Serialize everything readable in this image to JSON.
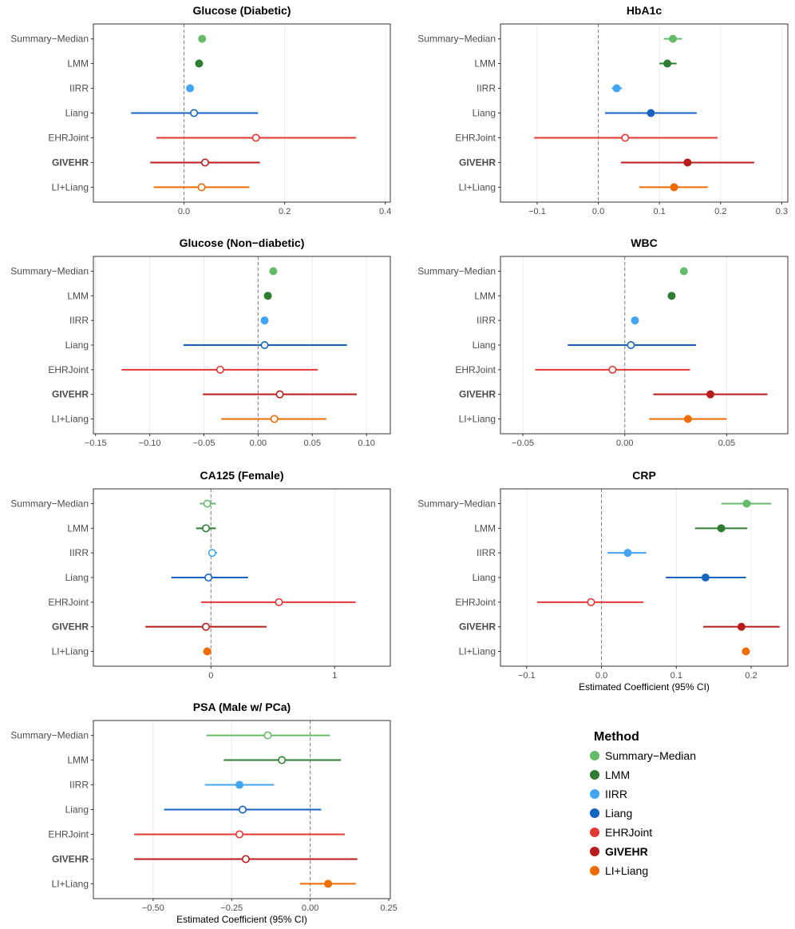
{
  "chart_data": [
    {
      "type": "forest",
      "title": "Glucose (Diabetic)",
      "xlabel": "",
      "xlim": [
        -0.18,
        0.41
      ],
      "xticks": [
        0.0,
        0.2,
        0.4
      ],
      "xtick_labels": [
        "0.0",
        "0.2",
        "0.4"
      ],
      "rows": [
        {
          "method": "Summary−Median",
          "est": 0.036,
          "lo": null,
          "hi": null,
          "filled": true
        },
        {
          "method": "LMM",
          "est": 0.03,
          "lo": null,
          "hi": null,
          "filled": true
        },
        {
          "method": "IIRR",
          "est": 0.012,
          "lo": null,
          "hi": null,
          "filled": true
        },
        {
          "method": "Liang",
          "est": 0.02,
          "lo": -0.105,
          "hi": 0.147,
          "filled": false
        },
        {
          "method": "EHRJoint",
          "est": 0.143,
          "lo": -0.055,
          "hi": 0.342,
          "filled": false
        },
        {
          "method": "GIVEHR",
          "est": 0.042,
          "lo": -0.067,
          "hi": 0.151,
          "filled": false
        },
        {
          "method": "LI+Liang",
          "est": 0.035,
          "lo": -0.06,
          "hi": 0.13,
          "filled": false
        }
      ]
    },
    {
      "type": "forest",
      "title": "HbA1c",
      "xlabel": "",
      "xlim": [
        -0.16,
        0.31
      ],
      "xticks": [
        -0.1,
        0.0,
        0.1,
        0.2,
        0.3
      ],
      "xtick_labels": [
        "−0.1",
        "0.0",
        "0.1",
        "0.2",
        "0.3"
      ],
      "rows": [
        {
          "method": "Summary−Median",
          "est": 0.122,
          "lo": 0.107,
          "hi": 0.137,
          "filled": true
        },
        {
          "method": "LMM",
          "est": 0.113,
          "lo": 0.1,
          "hi": 0.128,
          "filled": true
        },
        {
          "method": "IIRR",
          "est": 0.03,
          "lo": 0.022,
          "hi": 0.039,
          "filled": true
        },
        {
          "method": "Liang",
          "est": 0.086,
          "lo": 0.011,
          "hi": 0.161,
          "filled": true
        },
        {
          "method": "EHRJoint",
          "est": 0.044,
          "lo": -0.105,
          "hi": 0.195,
          "filled": false
        },
        {
          "method": "GIVEHR",
          "est": 0.146,
          "lo": 0.037,
          "hi": 0.255,
          "filled": true
        },
        {
          "method": "LI+Liang",
          "est": 0.124,
          "lo": 0.067,
          "hi": 0.179,
          "filled": true
        }
      ]
    },
    {
      "type": "forest",
      "title": "Glucose (Non−diabetic)",
      "xlabel": "",
      "xlim": [
        -0.152,
        0.122
      ],
      "xticks": [
        -0.15,
        -0.1,
        -0.05,
        0.0,
        0.05,
        0.1
      ],
      "xtick_labels": [
        "−0.15",
        "−0.10",
        "−0.05",
        "0.00",
        "0.05",
        "0.10"
      ],
      "rows": [
        {
          "method": "Summary−Median",
          "est": 0.014,
          "lo": null,
          "hi": null,
          "filled": true
        },
        {
          "method": "LMM",
          "est": 0.009,
          "lo": null,
          "hi": null,
          "filled": true
        },
        {
          "method": "IIRR",
          "est": 0.006,
          "lo": null,
          "hi": null,
          "filled": true
        },
        {
          "method": "Liang",
          "est": 0.006,
          "lo": -0.069,
          "hi": 0.082,
          "filled": false
        },
        {
          "method": "EHRJoint",
          "est": -0.035,
          "lo": -0.126,
          "hi": 0.055,
          "filled": false
        },
        {
          "method": "GIVEHR",
          "est": 0.02,
          "lo": -0.051,
          "hi": 0.091,
          "filled": false
        },
        {
          "method": "LI+Liang",
          "est": 0.015,
          "lo": -0.034,
          "hi": 0.063,
          "filled": false
        }
      ]
    },
    {
      "type": "forest",
      "title": "WBC",
      "xlabel": "",
      "xlim": [
        -0.061,
        0.08
      ],
      "xticks": [
        -0.05,
        0.0,
        0.05
      ],
      "xtick_labels": [
        "−0.05",
        "0.00",
        "0.05"
      ],
      "rows": [
        {
          "method": "Summary−Median",
          "est": 0.029,
          "lo": 0.028,
          "hi": 0.03,
          "filled": true
        },
        {
          "method": "LMM",
          "est": 0.023,
          "lo": 0.022,
          "hi": 0.024,
          "filled": true
        },
        {
          "method": "IIRR",
          "est": 0.005,
          "lo": null,
          "hi": null,
          "filled": true
        },
        {
          "method": "Liang",
          "est": 0.003,
          "lo": -0.028,
          "hi": 0.035,
          "filled": false
        },
        {
          "method": "EHRJoint",
          "est": -0.006,
          "lo": -0.044,
          "hi": 0.032,
          "filled": false
        },
        {
          "method": "GIVEHR",
          "est": 0.042,
          "lo": 0.014,
          "hi": 0.07,
          "filled": true
        },
        {
          "method": "LI+Liang",
          "est": 0.031,
          "lo": 0.012,
          "hi": 0.05,
          "filled": true
        }
      ]
    },
    {
      "type": "forest",
      "title": "CA125 (Female)",
      "xlabel": "",
      "xlim": [
        -0.95,
        1.45
      ],
      "xticks": [
        0,
        1
      ],
      "xtick_labels": [
        "0",
        "1"
      ],
      "rows": [
        {
          "method": "Summary−Median",
          "est": -0.03,
          "lo": -0.09,
          "hi": 0.04,
          "filled": false
        },
        {
          "method": "LMM",
          "est": -0.04,
          "lo": -0.12,
          "hi": 0.04,
          "filled": false
        },
        {
          "method": "IIRR",
          "est": 0.01,
          "lo": -0.02,
          "hi": 0.05,
          "filled": false
        },
        {
          "method": "Liang",
          "est": -0.02,
          "lo": -0.32,
          "hi": 0.3,
          "filled": false
        },
        {
          "method": "EHRJoint",
          "est": 0.55,
          "lo": -0.08,
          "hi": 1.17,
          "filled": false
        },
        {
          "method": "GIVEHR",
          "est": -0.04,
          "lo": -0.53,
          "hi": 0.45,
          "filled": false
        },
        {
          "method": "LI+Liang",
          "est": -0.03,
          "lo": null,
          "hi": null,
          "filled": true
        }
      ]
    },
    {
      "type": "forest",
      "title": "CRP",
      "xlabel": "Estimated Coefficient (95% CI)",
      "xlim": [
        -0.135,
        0.249
      ],
      "xticks": [
        -0.1,
        0.0,
        0.1,
        0.2
      ],
      "xtick_labels": [
        "−0.1",
        "0.0",
        "0.1",
        "0.2"
      ],
      "rows": [
        {
          "method": "Summary−Median",
          "est": 0.194,
          "lo": 0.16,
          "hi": 0.227,
          "filled": true
        },
        {
          "method": "LMM",
          "est": 0.16,
          "lo": 0.125,
          "hi": 0.195,
          "filled": true
        },
        {
          "method": "IIRR",
          "est": 0.035,
          "lo": 0.008,
          "hi": 0.06,
          "filled": true
        },
        {
          "method": "Liang",
          "est": 0.139,
          "lo": 0.086,
          "hi": 0.193,
          "filled": true
        },
        {
          "method": "EHRJoint",
          "est": -0.014,
          "lo": -0.086,
          "hi": 0.056,
          "filled": false
        },
        {
          "method": "GIVEHR",
          "est": 0.187,
          "lo": 0.136,
          "hi": 0.238,
          "filled": true
        },
        {
          "method": "LI+Liang",
          "est": 0.193,
          "lo": null,
          "hi": null,
          "filled": true
        }
      ]
    },
    {
      "type": "forest",
      "title": "PSA (Male w/ PCa)",
      "xlabel": "Estimated Coefficient (95% CI)",
      "xlim": [
        -0.69,
        0.255
      ],
      "xticks": [
        -0.5,
        -0.25,
        0.0,
        0.25
      ],
      "xtick_labels": [
        "−0.50",
        "−0.25",
        "0.00",
        "0.25"
      ],
      "rows": [
        {
          "method": "Summary−Median",
          "est": -0.135,
          "lo": -0.33,
          "hi": 0.063,
          "filled": false
        },
        {
          "method": "LMM",
          "est": -0.09,
          "lo": -0.275,
          "hi": 0.098,
          "filled": false
        },
        {
          "method": "IIRR",
          "est": -0.225,
          "lo": -0.335,
          "hi": -0.115,
          "filled": true
        },
        {
          "method": "Liang",
          "est": -0.215,
          "lo": -0.465,
          "hi": 0.035,
          "filled": false
        },
        {
          "method": "EHRJoint",
          "est": -0.225,
          "lo": -0.56,
          "hi": 0.11,
          "filled": false
        },
        {
          "method": "GIVEHR",
          "est": -0.205,
          "lo": -0.56,
          "hi": 0.15,
          "filled": false
        },
        {
          "method": "LI+Liang",
          "est": 0.057,
          "lo": -0.033,
          "hi": 0.145,
          "filled": true
        }
      ]
    }
  ],
  "methods": [
    "Summary−Median",
    "LMM",
    "IIRR",
    "Liang",
    "EHRJoint",
    "GIVEHR",
    "LI+Liang"
  ],
  "colors": {
    "Summary−Median": "#66bb6a",
    "LMM": "#2e7d32",
    "IIRR": "#42a5f5",
    "Liang": "#1565c0",
    "EHRJoint": "#e53935",
    "GIVEHR": "#b71c1c",
    "LI+Liang": "#ef6c00"
  },
  "bold_methods": [
    "GIVEHR"
  ],
  "legend": {
    "title": "Method",
    "items": [
      "Summary−Median",
      "LMM",
      "IIRR",
      "Liang",
      "EHRJoint",
      "GIVEHR",
      "LI+Liang"
    ]
  }
}
